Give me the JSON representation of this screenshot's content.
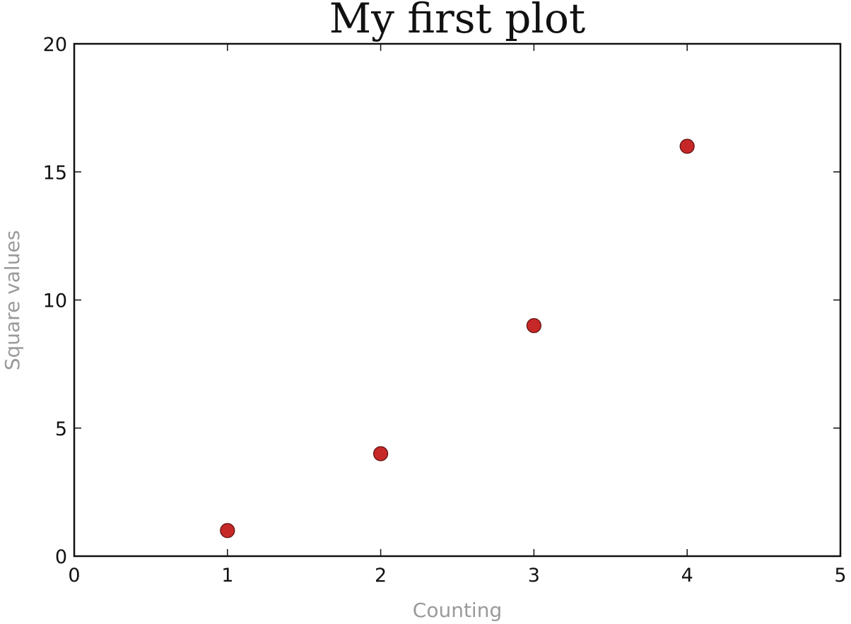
{
  "chart_data": {
    "type": "scatter",
    "title": "My first plot",
    "xlabel": "Counting",
    "ylabel": "Square values",
    "xlim": [
      0,
      5
    ],
    "ylim": [
      0,
      20
    ],
    "x_ticks": [
      "0",
      "1",
      "2",
      "3",
      "4",
      "5"
    ],
    "y_ticks": [
      "0",
      "5",
      "10",
      "15",
      "20"
    ],
    "series": [
      {
        "points": [
          {
            "x": 1,
            "y": 1
          },
          {
            "x": 2,
            "y": 4
          },
          {
            "x": 3,
            "y": 9
          },
          {
            "x": 4,
            "y": 16
          }
        ],
        "color": "#c62828",
        "marker": "circle"
      }
    ],
    "grid": false,
    "legend": "none"
  }
}
